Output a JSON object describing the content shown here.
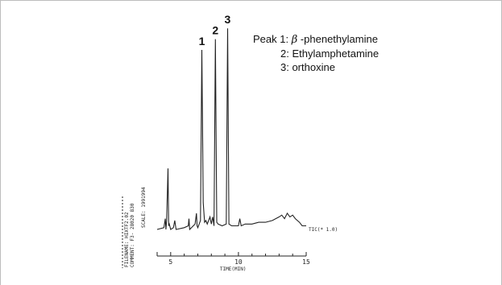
{
  "legend": {
    "line1_prefix": "Peak 1: ",
    "line1_greek": "β",
    "line1_name": " -phenethylamine",
    "line2": "2: Ethylamphetamine",
    "line3": "3: orthoxine"
  },
  "chart_data": {
    "type": "line",
    "xlabel": "TIME(MIN)",
    "xlim": [
      4,
      15
    ],
    "x_ticks": [
      "5",
      "10",
      "15"
    ],
    "trace_label": "TIC(* 1.0)",
    "scale_text": "SCALE: 1991994",
    "file_text_1": "FILENAME: HIXTF2.02",
    "file_text_2": "COMMENT: F3- 28020 830",
    "peak_labels": [
      {
        "label": "1",
        "x": 7.3,
        "y": 1.0
      },
      {
        "label": "2",
        "x": 8.3,
        "y": 1.06
      },
      {
        "label": "3",
        "x": 9.2,
        "y": 1.12
      }
    ],
    "series": [
      {
        "x": [
          4.0,
          4.5,
          4.6,
          4.65,
          4.7,
          4.8,
          4.85,
          4.9,
          5.0,
          5.2,
          5.3,
          5.4,
          6.0,
          6.3,
          6.35,
          6.4,
          6.8,
          6.9,
          6.95,
          7.0,
          7.2,
          7.3,
          7.4,
          7.5,
          7.6,
          7.7,
          7.9,
          8.0,
          8.1,
          8.2,
          8.3,
          8.4,
          8.5,
          8.8,
          9.1,
          9.2,
          9.3,
          9.5,
          10.0,
          10.1,
          10.2,
          10.5,
          11.0,
          11.5,
          12.0,
          12.5,
          13.0,
          13.2,
          13.4,
          13.6,
          13.8,
          14.0,
          14.2,
          14.5,
          14.7,
          15.0
        ],
        "y": [
          0.0,
          0.01,
          0.06,
          0.0,
          0.05,
          0.34,
          0.02,
          0.03,
          0.0,
          0.01,
          0.05,
          0.0,
          0.01,
          0.02,
          0.06,
          0.0,
          0.03,
          0.09,
          0.02,
          0.01,
          0.05,
          1.0,
          0.15,
          0.04,
          0.05,
          0.03,
          0.07,
          0.03,
          0.07,
          0.02,
          1.06,
          0.04,
          0.03,
          0.02,
          0.03,
          1.12,
          0.03,
          0.02,
          0.02,
          0.06,
          0.02,
          0.03,
          0.03,
          0.04,
          0.04,
          0.05,
          0.07,
          0.08,
          0.06,
          0.09,
          0.07,
          0.08,
          0.06,
          0.04,
          0.02,
          0.02
        ]
      }
    ]
  }
}
